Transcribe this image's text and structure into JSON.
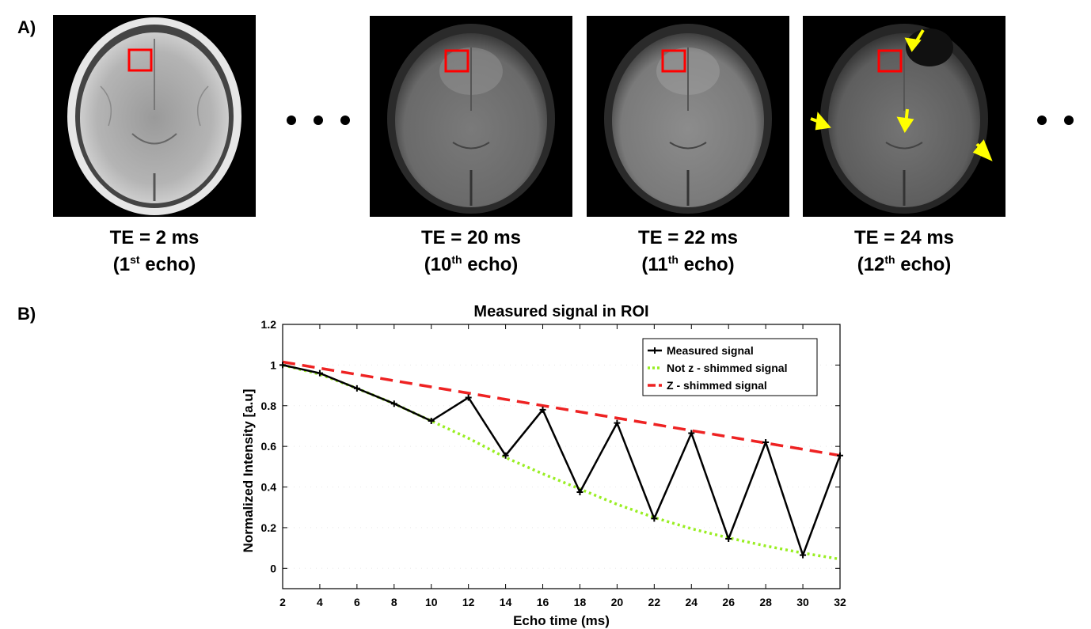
{
  "panel_a": {
    "label": "A)",
    "images": [
      {
        "te": "TE = 2 ms",
        "echo_num": "1",
        "echo_sup": "st",
        "echo_word": "echo"
      },
      {
        "te": "TE = 20 ms",
        "echo_num": "10",
        "echo_sup": "th",
        "echo_word": "echo"
      },
      {
        "te": "TE = 22 ms",
        "echo_num": "11",
        "echo_sup": "th",
        "echo_word": "echo"
      },
      {
        "te": "TE = 24 ms",
        "echo_num": "12",
        "echo_sup": "th",
        "echo_word": "echo"
      }
    ],
    "roi_color": "#ff0000",
    "arrow_color": "#ffff00"
  },
  "panel_b": {
    "label": "B)"
  },
  "chart_data": {
    "type": "line",
    "title": "Measured signal in ROI",
    "xlabel": "Echo time (ms)",
    "ylabel": "Normalized Intensity [a.u]",
    "xlim": [
      2,
      32
    ],
    "ylim": [
      -0.1,
      1.2
    ],
    "xticks": [
      2,
      4,
      6,
      8,
      10,
      12,
      14,
      16,
      18,
      20,
      22,
      24,
      26,
      28,
      30,
      32
    ],
    "yticks": [
      0,
      0.2,
      0.4,
      0.6,
      0.8,
      1,
      1.2
    ],
    "ytick_labels": [
      "0",
      "0.2",
      "0.4",
      "0.6",
      "0.8",
      "1",
      "1.2"
    ],
    "legend_position": "top-right",
    "series": [
      {
        "name": "Measured signal",
        "color": "#000000",
        "style": "solid-plus",
        "x": [
          2,
          4,
          6,
          8,
          10,
          12,
          14,
          16,
          18,
          20,
          22,
          24,
          26,
          28,
          30,
          32
        ],
        "y": [
          1.0,
          0.96,
          0.885,
          0.81,
          0.725,
          0.84,
          0.555,
          0.78,
          0.375,
          0.715,
          0.245,
          0.665,
          0.145,
          0.62,
          0.065,
          0.555
        ]
      },
      {
        "name": "Not z - shimmed signal",
        "color": "#99ee22",
        "style": "dotted",
        "x": [
          2,
          4,
          6,
          8,
          10,
          12,
          14,
          16,
          18,
          20,
          22,
          24,
          26,
          28,
          30,
          32
        ],
        "y": [
          1.0,
          0.955,
          0.885,
          0.81,
          0.725,
          0.64,
          0.545,
          0.465,
          0.39,
          0.315,
          0.25,
          0.195,
          0.15,
          0.11,
          0.075,
          0.045
        ]
      },
      {
        "name": "Z - shimmed signal",
        "color": "#ee2222",
        "style": "dashed",
        "x": [
          2,
          32
        ],
        "y": [
          1.015,
          0.555
        ]
      }
    ]
  }
}
